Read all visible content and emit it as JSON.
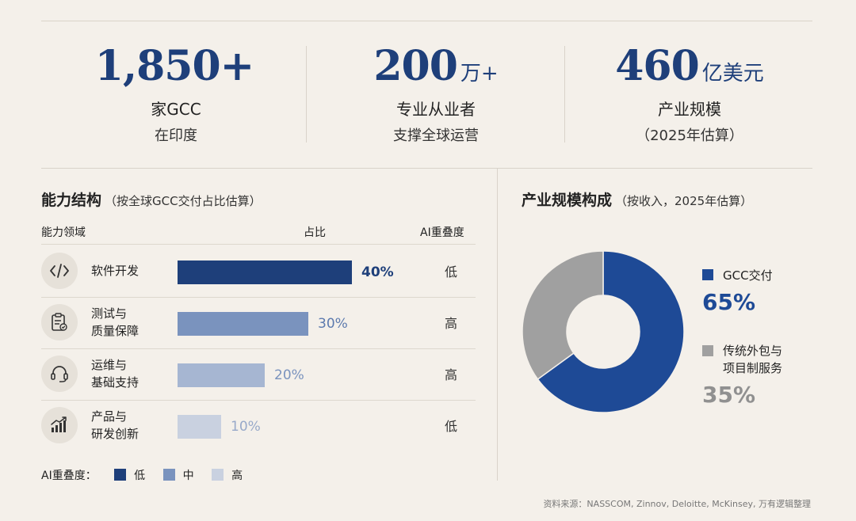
{
  "stats": [
    {
      "value": "1,850+",
      "unit": "",
      "line1": "家GCC",
      "line2": "在印度"
    },
    {
      "value": "200",
      "unit": "万+",
      "line1": "专业从业者",
      "line2": "支撑全球运营"
    },
    {
      "value": "460",
      "unit": "亿美元",
      "line1": "产业规模",
      "line2": "（2025年估算）"
    }
  ],
  "capability": {
    "title": "能力结构",
    "subtitle": "（按全球GCC交付占比估算）",
    "headers": {
      "area": "能力领域",
      "share": "占比",
      "overlap": "AI重叠度"
    },
    "rows": [
      {
        "icon": "code-icon",
        "label": "软件开发",
        "share_label": "40%",
        "overlap": "低"
      },
      {
        "icon": "clipboard-check-icon",
        "label": "测试与\n质量保障",
        "share_label": "30%",
        "overlap": "高"
      },
      {
        "icon": "headset-icon",
        "label": "运维与\n基础支持",
        "share_label": "20%",
        "overlap": "高"
      },
      {
        "icon": "bar-chart-icon",
        "label": "产品与\n研发创新",
        "share_label": "10%",
        "overlap": "低"
      }
    ],
    "legend_title": "AI重叠度：",
    "legend": [
      {
        "label": "低",
        "color": "#1e3f7a"
      },
      {
        "label": "中",
        "color": "#7a93be"
      },
      {
        "label": "高",
        "color": "#c9d1e0"
      }
    ]
  },
  "industry": {
    "title": "产业规模构成",
    "subtitle": "（按收入，2025年估算）"
  },
  "chart_data": [
    {
      "type": "bar",
      "orientation": "horizontal",
      "categories": [
        "软件开发",
        "测试与质量保障",
        "运维与基础支持",
        "产品与研发创新"
      ],
      "values": [
        40,
        30,
        20,
        10
      ],
      "colors": [
        "#1e3f7a",
        "#7a93be",
        "#a6b6d2",
        "#c9d1e0"
      ],
      "label_colors": [
        "#1e3f7a",
        "#5c7aae",
        "#7a93be",
        "#98a9c9"
      ],
      "xlim": [
        0,
        40
      ]
    },
    {
      "type": "pie",
      "donut": true,
      "slices": [
        {
          "label": "GCC交付",
          "value": 65,
          "value_label": "65%",
          "color": "#1e4a96"
        },
        {
          "label": "传统外包与\n项目制服务",
          "value": 35,
          "value_label": "35%",
          "color": "#a0a0a0"
        }
      ],
      "value_label_colors": [
        "#1e4a96",
        "#909090"
      ]
    }
  ],
  "source": "资料来源：NASSCOM, Zinnov, Deloitte, McKinsey, 万有逻辑整理"
}
